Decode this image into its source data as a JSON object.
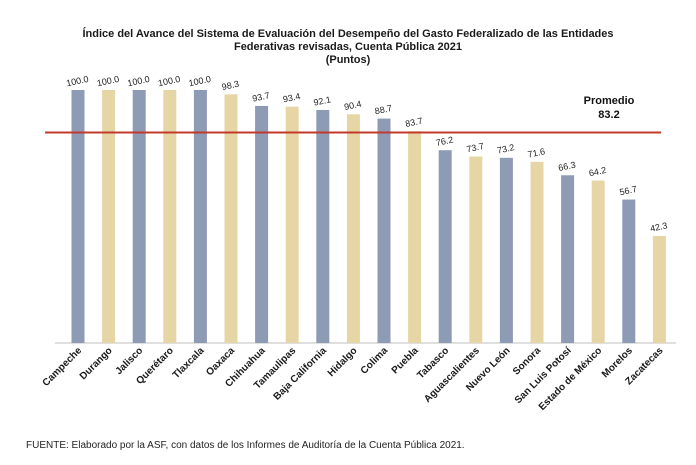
{
  "chart_data": {
    "type": "bar",
    "title_lines": [
      "Índice del Avance del Sistema de Evaluación del Desempeño del Gasto Federalizado de las Entidades",
      "Federativas revisadas, Cuenta Pública 2021",
      "(Puntos)"
    ],
    "categories": [
      "Campeche",
      "Durango",
      "Jalisco",
      "Querétaro",
      "Tlaxcala",
      "Oaxaca",
      "Chihuahua",
      "Tamaulipas",
      "Baja California",
      "Hidalgo",
      "Colima",
      "Puebla",
      "Tabasco",
      "Aguascalientes",
      "Nuevo León",
      "Sonora",
      "San Luis Potosí",
      "Estado de México",
      "Morelos",
      "Zacatecas"
    ],
    "values": [
      100.0,
      100.0,
      100.0,
      100.0,
      100.0,
      98.3,
      93.7,
      93.4,
      92.1,
      90.4,
      88.7,
      83.7,
      76.2,
      73.7,
      73.2,
      71.6,
      66.3,
      64.2,
      56.7,
      42.3
    ],
    "value_labels": [
      "100.0",
      "100.0",
      "100.0",
      "100.0",
      "100.0",
      "98.3",
      "93.7",
      "93.4",
      "92.1",
      "90.4",
      "88.7",
      "83.7",
      "76.2",
      "73.7",
      "73.2",
      "71.6",
      "66.3",
      "64.2",
      "56.7",
      "42.3"
    ],
    "reference_line": {
      "label": "Promedio",
      "value": 83.2,
      "value_label": "83.2",
      "color": "#c0392b"
    },
    "ylim": [
      0,
      100
    ],
    "colors": {
      "blue": "#8e9bb5",
      "tan": "#e6d6a6",
      "axis": "#bfbfbf"
    },
    "grid": false,
    "legend": "none"
  },
  "footer": {
    "source": "FUENTE: Elaborado por la ASF, con datos de los Informes de Auditoría de la Cuenta Pública 2021."
  }
}
